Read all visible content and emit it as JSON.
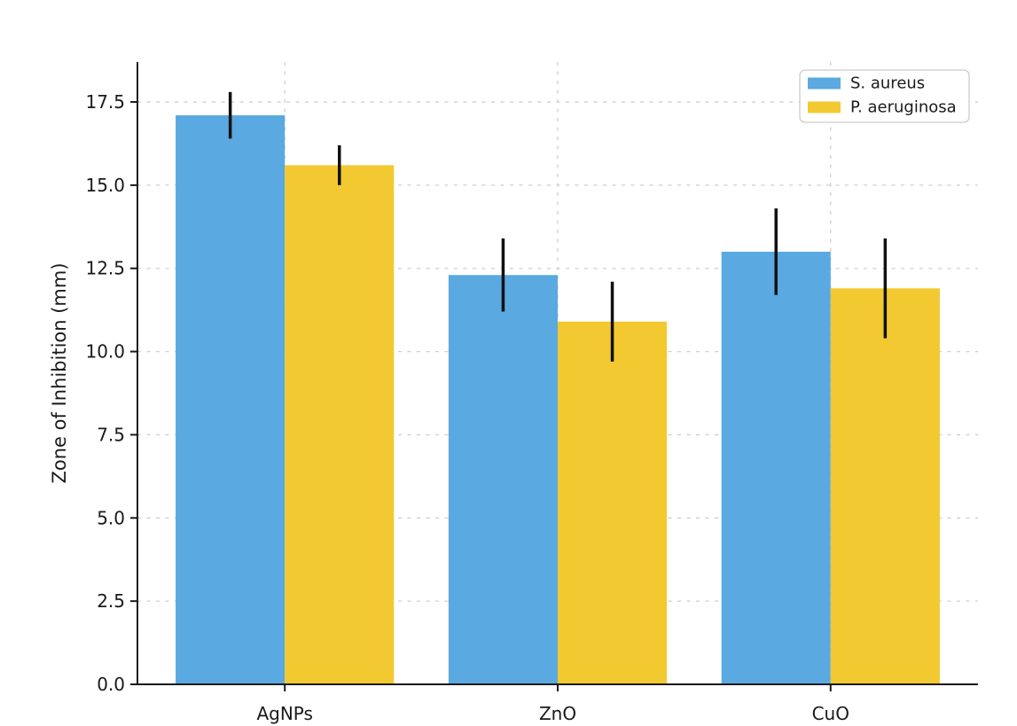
{
  "figure": {
    "background": "#ffffff",
    "text_color": "#1a1a1a"
  },
  "chart_data": {
    "type": "bar",
    "title": "",
    "xlabel": "",
    "ylabel": "Zone of Inhibition (mm)",
    "categories": [
      "AgNPs",
      "ZnO",
      "CuO"
    ],
    "series": [
      {
        "name": "S. aureus",
        "color": "#5AA9E0",
        "values": [
          17.1,
          12.3,
          13.0
        ],
        "errors": [
          0.7,
          1.1,
          1.3
        ]
      },
      {
        "name": "P. aeruginosa",
        "color": "#F2C930",
        "values": [
          15.6,
          10.9,
          11.9
        ],
        "errors": [
          0.6,
          1.2,
          1.5
        ]
      }
    ],
    "ylim": [
      0,
      18.7
    ],
    "yticks": [
      0.0,
      2.5,
      5.0,
      7.5,
      10.0,
      12.5,
      15.0,
      17.5
    ],
    "ytick_decimals": 1,
    "grid": true,
    "grid_axis": "both",
    "grid_style": "dashed",
    "grid_color": "#cfcfcf",
    "spine_color": "#1a1a1a",
    "error_bar_color": "#111111",
    "bar_width": 0.4,
    "legend": {
      "position": "upper right",
      "entries": [
        "S. aureus",
        "P. aeruginosa"
      ],
      "border_color": "#cccccc",
      "background": "#ffffff"
    }
  }
}
